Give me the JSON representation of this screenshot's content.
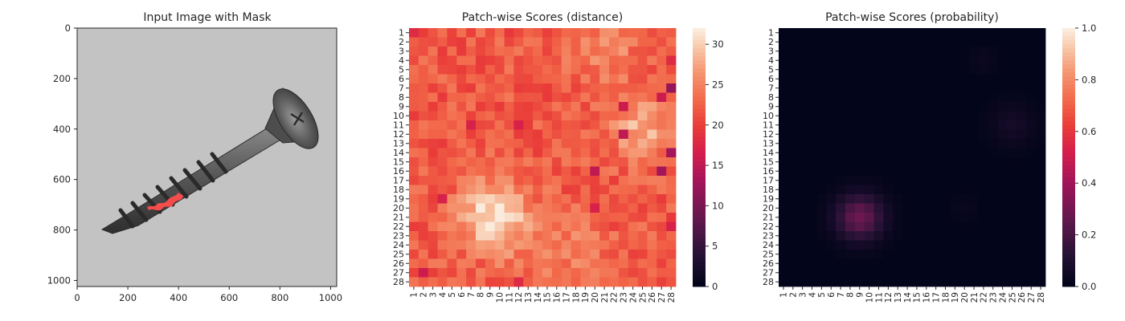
{
  "chart_data": [
    {
      "type": "image",
      "title": "Input Image with Mask",
      "x_ticks": [
        0,
        200,
        400,
        600,
        800,
        1000
      ],
      "y_ticks": [
        0,
        200,
        400,
        600,
        800,
        1000
      ],
      "xlim": [
        0,
        1024
      ],
      "ylim": [
        1024,
        0
      ],
      "image_content": "screw",
      "mask_color": "#ff4d4d"
    },
    {
      "type": "heatmap",
      "title": "Patch-wise Scores (distance)",
      "rows": 28,
      "cols": 28,
      "row_labels": [
        "1",
        "2",
        "3",
        "4",
        "5",
        "6",
        "7",
        "8",
        "9",
        "10",
        "11",
        "12",
        "13",
        "14",
        "15",
        "16",
        "17",
        "18",
        "19",
        "20",
        "21",
        "22",
        "23",
        "24",
        "25",
        "26",
        "27",
        "28"
      ],
      "col_labels": [
        "1",
        "2",
        "3",
        "4",
        "5",
        "6",
        "7",
        "8",
        "9",
        "10",
        "11",
        "12",
        "13",
        "14",
        "15",
        "16",
        "17",
        "18",
        "19",
        "20",
        "21",
        "22",
        "23",
        "24",
        "25",
        "26",
        "27",
        "28"
      ],
      "colormap": "rocket",
      "vmin": 0,
      "vmax": 32,
      "colorbar_ticks": [
        0,
        5,
        10,
        15,
        20,
        25,
        30
      ],
      "base_value": 22,
      "hotspots": [
        {
          "row": 21,
          "col": 9.5,
          "value": 32,
          "radius": 2.6
        },
        {
          "row": 11,
          "col": 25,
          "value": 28,
          "radius": 2.6
        },
        {
          "row": 3,
          "col": 21,
          "value": 26,
          "radius": 2.2
        },
        {
          "row": 25,
          "col": 17,
          "value": 25,
          "radius": 3.0
        }
      ],
      "lowspots": [
        {
          "row": 7,
          "col": 28,
          "value": 12
        },
        {
          "row": 14,
          "col": 28,
          "value": 13
        },
        {
          "row": 16,
          "col": 27,
          "value": 13
        },
        {
          "row": 16,
          "col": 20,
          "value": 15
        },
        {
          "row": 12,
          "col": 23,
          "value": 15
        },
        {
          "row": 11,
          "col": 12,
          "value": 17
        },
        {
          "row": 11,
          "col": 7,
          "value": 17
        },
        {
          "row": 27,
          "col": 2,
          "value": 16
        },
        {
          "row": 19,
          "col": 4,
          "value": 17
        },
        {
          "row": 20,
          "col": 20,
          "value": 17
        },
        {
          "row": 9,
          "col": 23,
          "value": 16
        },
        {
          "row": 8,
          "col": 27,
          "value": 16
        },
        {
          "row": 22,
          "col": 28,
          "value": 17
        },
        {
          "row": 4,
          "col": 28,
          "value": 18
        },
        {
          "row": 1,
          "col": 1,
          "value": 18
        },
        {
          "row": 28,
          "col": 12,
          "value": 18
        }
      ]
    },
    {
      "type": "heatmap",
      "title": "Patch-wise Scores (probability)",
      "rows": 28,
      "cols": 28,
      "row_labels": [
        "1",
        "2",
        "3",
        "4",
        "5",
        "6",
        "7",
        "8",
        "9",
        "10",
        "11",
        "12",
        "13",
        "14",
        "15",
        "16",
        "17",
        "18",
        "19",
        "20",
        "21",
        "22",
        "23",
        "24",
        "25",
        "26",
        "27",
        "28"
      ],
      "col_labels": [
        "1",
        "2",
        "3",
        "4",
        "5",
        "6",
        "7",
        "8",
        "9",
        "10",
        "11",
        "12",
        "13",
        "14",
        "15",
        "16",
        "17",
        "18",
        "19",
        "20",
        "21",
        "22",
        "23",
        "24",
        "25",
        "26",
        "27",
        "28"
      ],
      "colormap": "rocket",
      "vmin": 0.0,
      "vmax": 1.0,
      "colorbar_ticks": [
        "0.0",
        "0.2",
        "0.4",
        "0.6",
        "0.8",
        "1.0"
      ],
      "base_value": 0.0,
      "hotspots": [
        {
          "row": 21,
          "col": 9,
          "value": 0.28,
          "radius": 1.7
        },
        {
          "row": 11,
          "col": 25,
          "value": 0.06,
          "radius": 1.6
        },
        {
          "row": 4,
          "col": 22,
          "value": 0.03,
          "radius": 1.0
        },
        {
          "row": 20,
          "col": 20,
          "value": 0.02,
          "radius": 1.0
        }
      ]
    }
  ]
}
